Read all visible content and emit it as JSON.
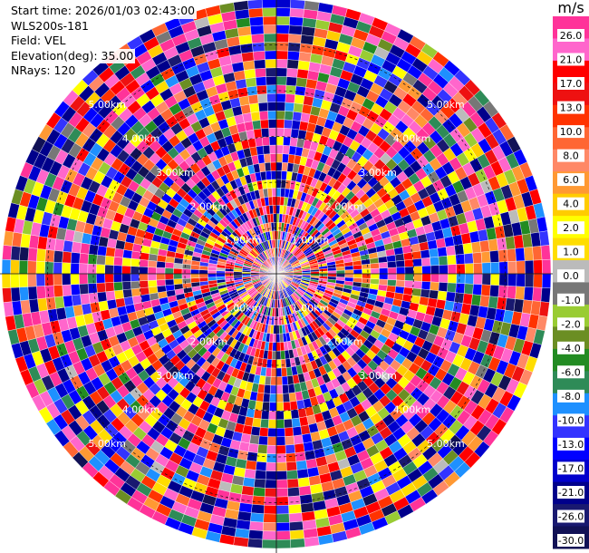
{
  "info": {
    "start_time": "Start time: 2026/01/03 02:43:00",
    "instrument": "WLS200s-181",
    "field": "Field: VEL",
    "elevation": "Elevation(deg): 35.00",
    "nrays": "NRays: 120"
  },
  "chart_data": {
    "type": "heatmap",
    "projection": "polar (PPI scan)",
    "title": "",
    "field": "VEL",
    "units": "m/s",
    "elevation_deg": 35.0,
    "n_rays": 120,
    "max_range_km": 6.0,
    "n_range_gates": 32,
    "range_ring_labels": [
      "1.00km",
      "2.00km",
      "3.00km",
      "4.00km",
      "5.00km"
    ],
    "colorbar": {
      "unit_label": "m/s",
      "tick_labels": [
        "26.0",
        "21.0",
        "17.0",
        "13.0",
        "10.0",
        "8.0",
        "6.0",
        "4.0",
        "2.0",
        "1.0",
        "0.0",
        "-1.0",
        "-2.0",
        "-4.0",
        "-6.0",
        "-8.0",
        "-10.0",
        "-13.0",
        "-17.0",
        "-21.0",
        "-26.0",
        "-30.0"
      ],
      "colors": [
        "#ff3399",
        "#ff66cc",
        "#ff0000",
        "#ee1111",
        "#ff3300",
        "#ff6633",
        "#ff8866",
        "#ff9933",
        "#ffcc00",
        "#ffff00",
        "#ffdd00",
        "#bbbbbb",
        "#777777",
        "#99cc33",
        "#6b8e23",
        "#228b22",
        "#2e8b57",
        "#1e90ff",
        "#3333ff",
        "#0000ff",
        "#0000cc",
        "#00008b",
        "#191970",
        "#111155"
      ]
    },
    "data_note": "velocity values per ray and range gate are not individually readable; cells show speckled noise spanning the full colour scale"
  }
}
